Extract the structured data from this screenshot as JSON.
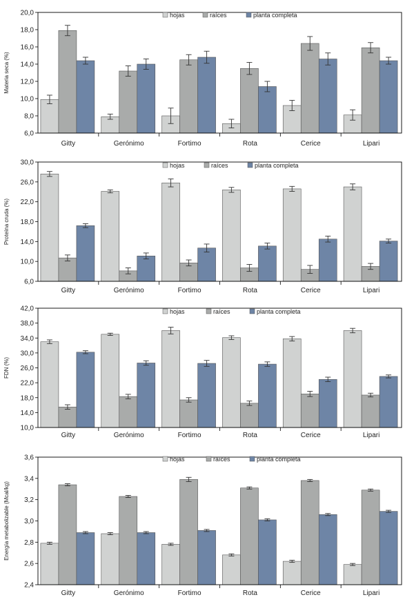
{
  "colors": {
    "hojas": "#d0d2d1",
    "raices": "#a9abaa",
    "planta": "#6e85a6",
    "frame": "#000000",
    "error": "#333333"
  },
  "chart_data": [
    {
      "type": "bar",
      "categories": [
        "Gitty",
        "Gerónimo",
        "Fortimo",
        "Rota",
        "Cerice",
        "Lipari"
      ],
      "ylabel": "Materia seca  (%)",
      "ylim": [
        6.0,
        20.0
      ],
      "yticks": [
        "6,0",
        "8,0",
        "10,0",
        "12,0",
        "14,0",
        "16,0",
        "18,0",
        "20,0"
      ],
      "legend_position": "top-center",
      "series": [
        {
          "name": "hojas",
          "values": [
            9.9,
            7.9,
            8.0,
            7.1,
            9.2,
            8.1
          ],
          "errors": [
            0.5,
            0.3,
            0.9,
            0.5,
            0.6,
            0.6
          ]
        },
        {
          "name": "raíces",
          "values": [
            17.9,
            13.2,
            14.5,
            13.5,
            16.4,
            15.9
          ],
          "errors": [
            0.6,
            0.6,
            0.6,
            0.7,
            0.8,
            0.6
          ]
        },
        {
          "name": "planta completa",
          "values": [
            14.4,
            14.0,
            14.8,
            11.4,
            14.6,
            14.4
          ],
          "errors": [
            0.4,
            0.6,
            0.7,
            0.6,
            0.7,
            0.4
          ]
        }
      ]
    },
    {
      "type": "bar",
      "categories": [
        "Gitty",
        "Gerónimo",
        "Fortimo",
        "Rota",
        "Cerice",
        "Lipari"
      ],
      "ylabel": "Proteína cruda (%)",
      "ylim": [
        6.0,
        30.0
      ],
      "yticks": [
        "6,0",
        "10,0",
        "14,0",
        "18,0",
        "22,0",
        "26,0",
        "30,0"
      ],
      "legend_position": "top-center",
      "series": [
        {
          "name": "hojas",
          "values": [
            27.6,
            24.1,
            25.8,
            24.4,
            24.6,
            25.0
          ],
          "errors": [
            0.5,
            0.3,
            0.8,
            0.5,
            0.5,
            0.6
          ]
        },
        {
          "name": "raíces",
          "values": [
            10.7,
            8.1,
            9.7,
            8.7,
            8.4,
            9.0
          ],
          "errors": [
            0.6,
            0.6,
            0.6,
            0.7,
            0.8,
            0.6
          ]
        },
        {
          "name": "planta completa",
          "values": [
            17.2,
            11.1,
            12.7,
            13.1,
            14.5,
            14.1
          ],
          "errors": [
            0.4,
            0.6,
            0.8,
            0.6,
            0.6,
            0.4
          ]
        }
      ]
    },
    {
      "type": "bar",
      "categories": [
        "Gitty",
        "Gerónimo",
        "Fortimo",
        "Rota",
        "Cerice",
        "Lipari"
      ],
      "ylabel": "FDN (%)",
      "ylim": [
        10.0,
        42.0
      ],
      "yticks": [
        "10,0",
        "14,0",
        "18,0",
        "22,0",
        "26,0",
        "30,0",
        "34,0",
        "38,0",
        "42,0"
      ],
      "legend_position": "top-center",
      "series": [
        {
          "name": "hojas",
          "values": [
            33.0,
            35.0,
            36.0,
            34.1,
            33.8,
            36.0
          ],
          "errors": [
            0.5,
            0.3,
            0.9,
            0.5,
            0.6,
            0.6
          ]
        },
        {
          "name": "raíces",
          "values": [
            15.5,
            18.3,
            17.4,
            16.5,
            19.0,
            18.7
          ],
          "errors": [
            0.6,
            0.6,
            0.6,
            0.6,
            0.7,
            0.5
          ]
        },
        {
          "name": "planta completa",
          "values": [
            30.2,
            27.3,
            27.2,
            27.0,
            22.9,
            23.7
          ],
          "errors": [
            0.4,
            0.6,
            0.8,
            0.6,
            0.6,
            0.4
          ]
        }
      ]
    },
    {
      "type": "bar",
      "categories": [
        "Gitty",
        "Gerónimo",
        "Fortimo",
        "Rota",
        "Cerice",
        "Lipari"
      ],
      "ylabel": "Energía metabolizable (Mcal/kg)",
      "ylim": [
        2.4,
        3.6
      ],
      "yticks": [
        "2,4",
        "2,6",
        "2,8",
        "3,0",
        "3,2",
        "3,4",
        "3,6"
      ],
      "legend_position": "top-center",
      "series": [
        {
          "name": "hojas",
          "values": [
            2.79,
            2.88,
            2.78,
            2.68,
            2.62,
            2.59
          ],
          "errors": [
            0.01,
            0.01,
            0.01,
            0.01,
            0.01,
            0.01
          ]
        },
        {
          "name": "raíces",
          "values": [
            3.34,
            3.23,
            3.39,
            3.31,
            3.38,
            3.29
          ],
          "errors": [
            0.01,
            0.01,
            0.02,
            0.01,
            0.01,
            0.01
          ]
        },
        {
          "name": "planta completa",
          "values": [
            2.89,
            2.89,
            2.91,
            3.01,
            3.06,
            3.09
          ],
          "errors": [
            0.01,
            0.01,
            0.01,
            0.01,
            0.01,
            0.01
          ]
        }
      ]
    }
  ]
}
